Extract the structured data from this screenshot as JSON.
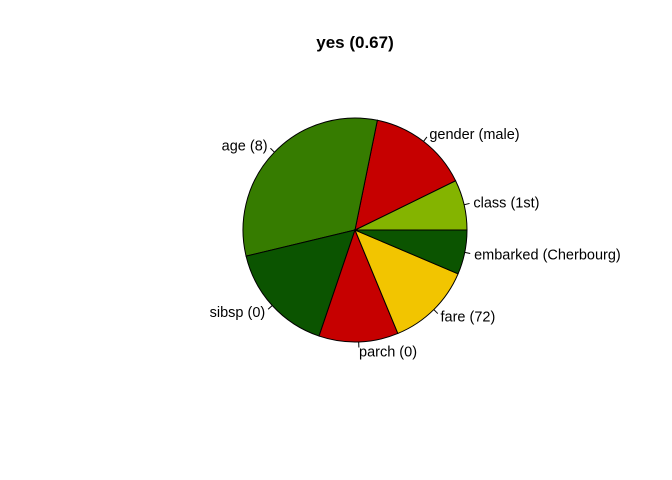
{
  "chart_data": {
    "type": "pie",
    "title": "yes (0.67)",
    "start_angle_deg": 0,
    "direction": "counterclockwise",
    "slices": [
      {
        "label": "class (1st)",
        "value": 0.0725,
        "color": "#84b400"
      },
      {
        "label": "gender (male)",
        "value": 0.1455,
        "color": "#c60000"
      },
      {
        "label": "age (8)",
        "value": 0.3195,
        "color": "#367c00"
      },
      {
        "label": "sibsp (0)",
        "value": 0.1605,
        "color": "#0b5400"
      },
      {
        "label": "parch (0)",
        "value": 0.1145,
        "color": "#c60000"
      },
      {
        "label": "fare (72)",
        "value": 0.1235,
        "color": "#f2c500"
      },
      {
        "label": "embarked (Cherbourg)",
        "value": 0.064,
        "color": "#0b5400"
      }
    ]
  }
}
